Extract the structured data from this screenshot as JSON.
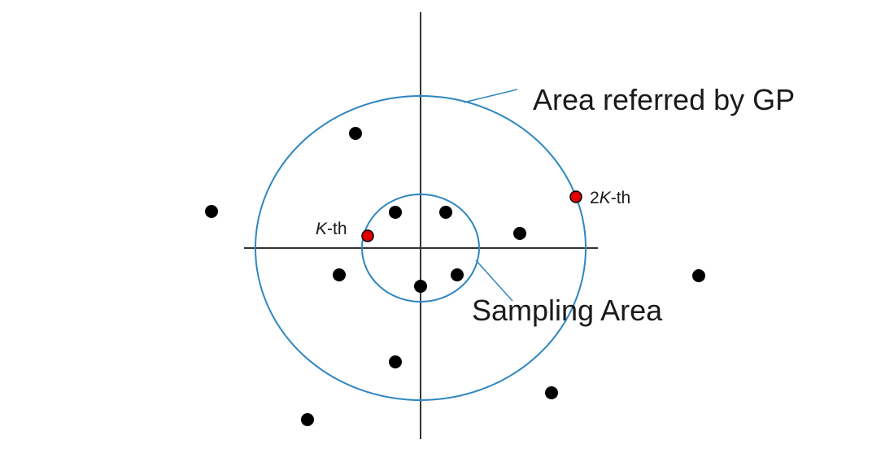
{
  "labels": {
    "gp_area": "Area referred by GP",
    "sampling_area": "Sampling Area",
    "kth_prefix": "K",
    "kth_suffix": "-th",
    "twok_prefix": "2",
    "twok_italic": "K",
    "twok_suffix": "-th"
  },
  "colors": {
    "circle_stroke": "#2e86c1",
    "axis": "#333333",
    "point": "#000000",
    "highlight_point": "#e00000"
  }
}
